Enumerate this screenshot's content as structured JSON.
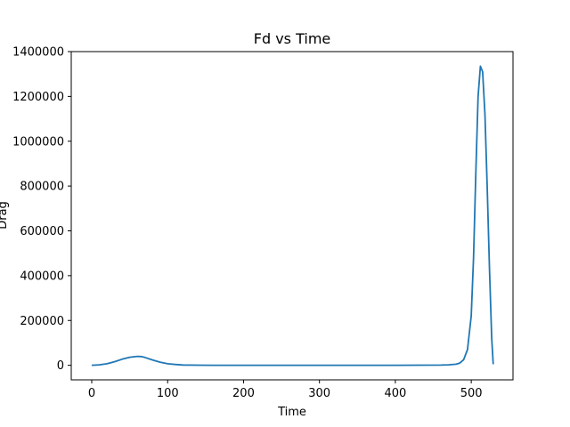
{
  "chart_data": {
    "type": "line",
    "title": "Fd vs Time",
    "xlabel": "Time",
    "ylabel": "Drag",
    "xlim": [
      -27,
      555
    ],
    "ylim": [
      -65000,
      1400000
    ],
    "xticks": [
      0,
      100,
      200,
      300,
      400,
      500
    ],
    "yticks": [
      0,
      200000,
      400000,
      600000,
      800000,
      1000000,
      1200000,
      1400000
    ],
    "grid": false,
    "color": "#1f77b4",
    "series": [
      {
        "x": [
          0,
          10,
          20,
          30,
          40,
          50,
          60,
          65,
          70,
          80,
          90,
          100,
          110,
          120,
          140,
          160,
          200,
          300,
          400,
          460,
          470,
          480,
          485,
          490,
          495,
          500,
          503,
          506,
          509,
          512,
          515,
          518,
          521,
          524,
          527,
          529
        ],
        "values": [
          0,
          2000,
          7000,
          16000,
          27000,
          36000,
          40000,
          39000,
          35000,
          24000,
          14000,
          7000,
          3500,
          1500,
          500,
          200,
          100,
          100,
          200,
          1000,
          2000,
          5000,
          10000,
          25000,
          70000,
          220000,
          480000,
          850000,
          1200000,
          1335000,
          1310000,
          1120000,
          800000,
          430000,
          120000,
          5000
        ]
      }
    ]
  }
}
